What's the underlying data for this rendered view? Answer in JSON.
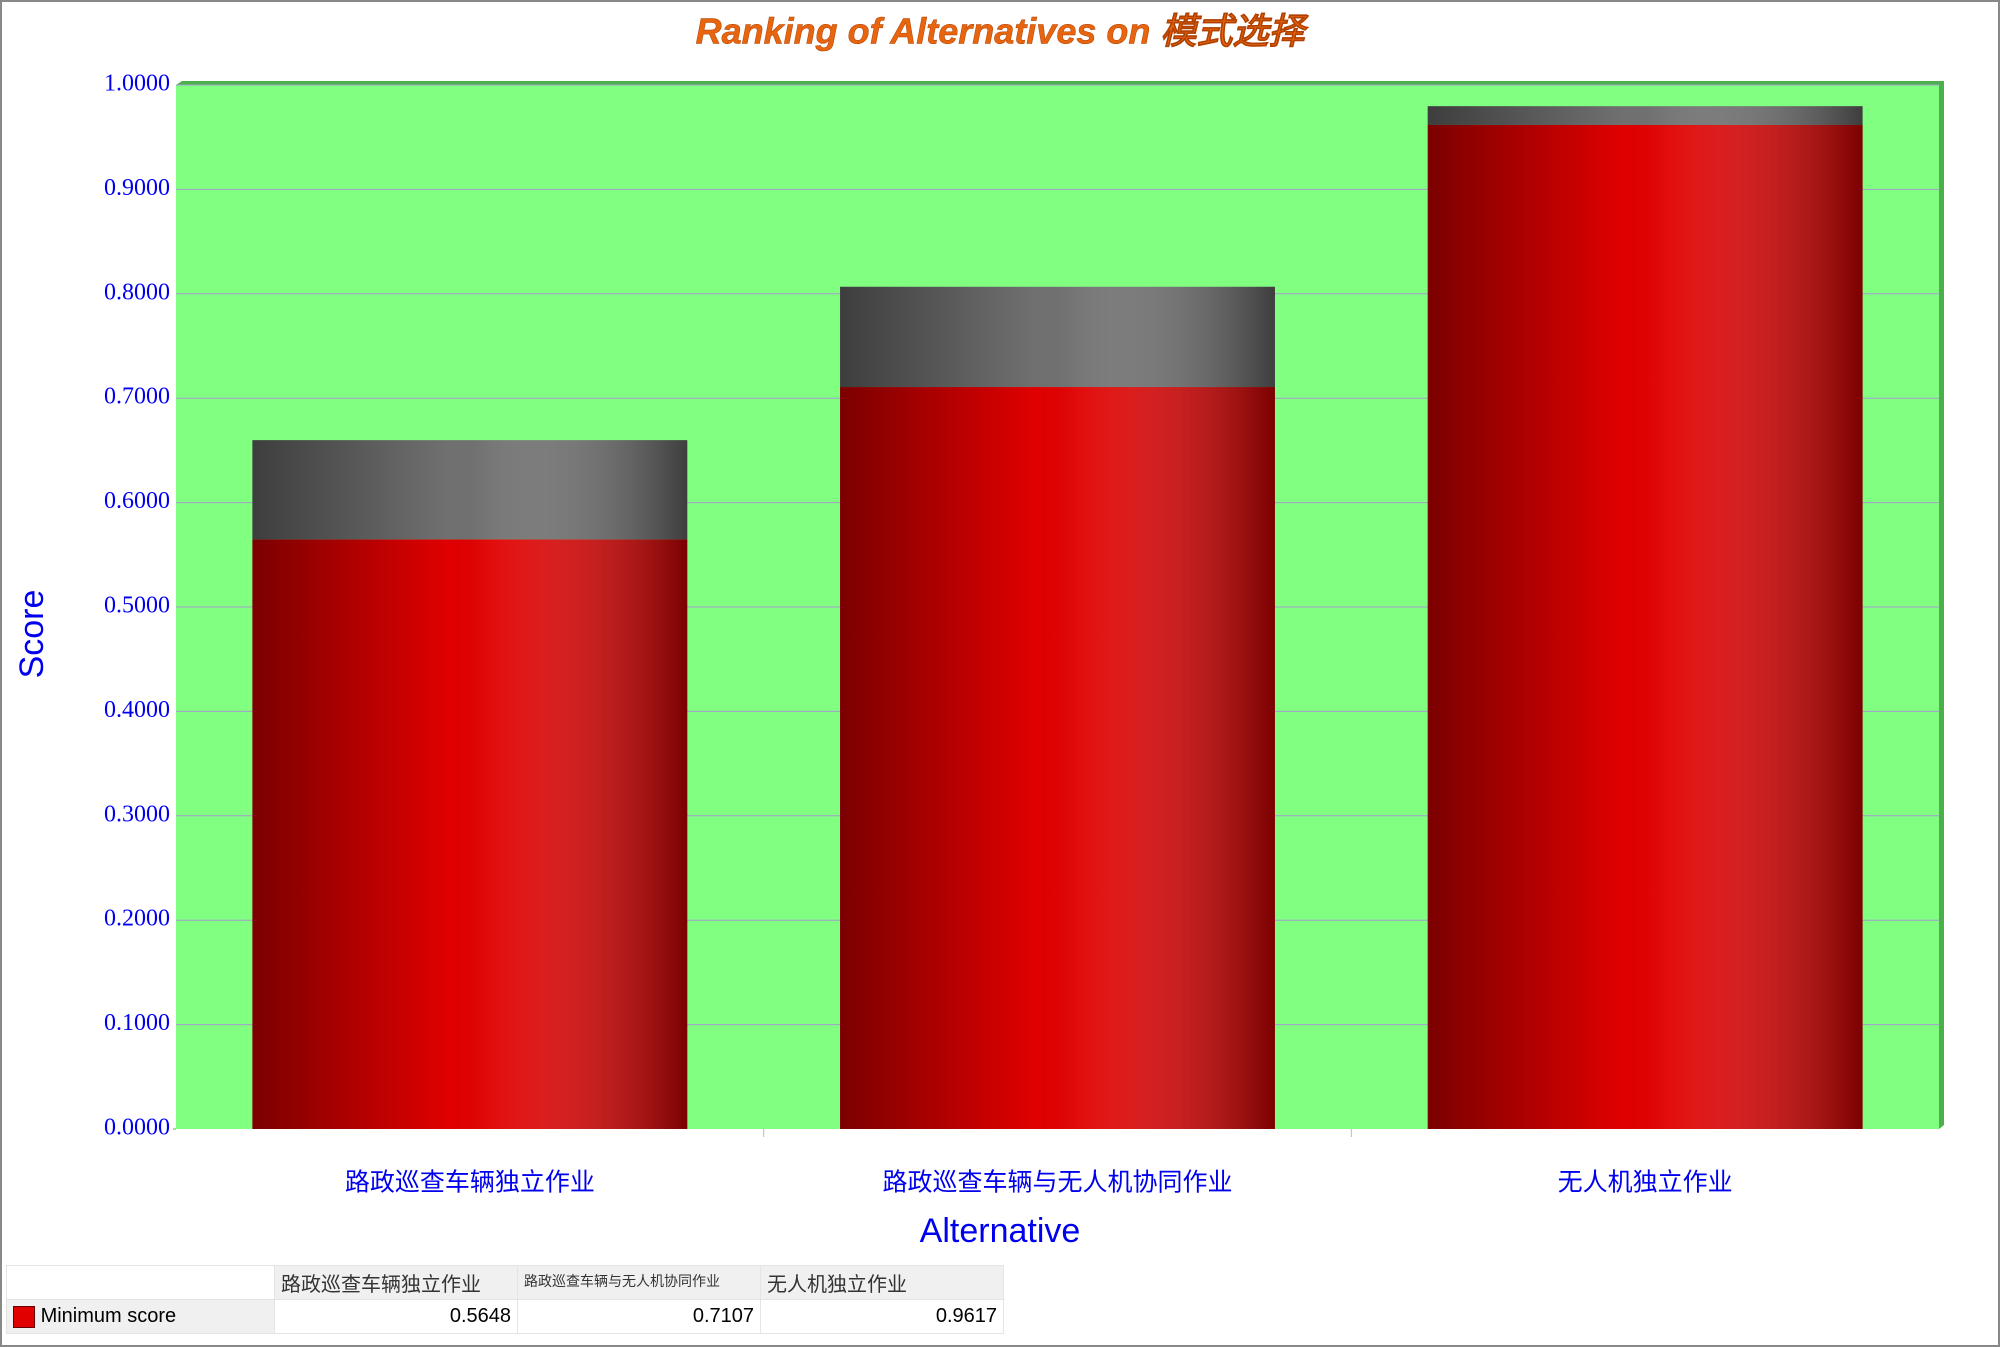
{
  "chart_data": {
    "type": "bar",
    "stacked": true,
    "title": "Ranking of Alternatives on 模式选择",
    "x_label": "Alternative",
    "y_label": "Score",
    "categories": [
      "路政巡查车辆独立作业",
      "路政巡查车辆与无人机协同作业",
      "无人机独立作业"
    ],
    "series": [
      {
        "name": "Minimum score",
        "color": "#e00000",
        "values": [
          0.5648,
          0.7107,
          0.9617
        ]
      },
      {
        "color": "#707070",
        "values": [
          0.095,
          0.096,
          0.018
        ]
      }
    ],
    "ylim": [
      0,
      1
    ],
    "yticks": [
      {
        "value": 0,
        "label": "0.0000"
      },
      {
        "value": 0.1,
        "label": "0.1000"
      },
      {
        "value": 0.2,
        "label": "0.2000"
      },
      {
        "value": 0.3,
        "label": "0.3000"
      },
      {
        "value": 0.4,
        "label": "0.4000"
      },
      {
        "value": 0.5,
        "label": "0.5000"
      },
      {
        "value": 0.6,
        "label": "0.6000"
      },
      {
        "value": 0.7,
        "label": "0.7000"
      },
      {
        "value": 0.8,
        "label": "0.8000"
      },
      {
        "value": 0.9,
        "label": "0.9000"
      },
      {
        "value": 1,
        "label": "1.0000"
      }
    ],
    "grid": true,
    "background": "#80ff80"
  }
}
